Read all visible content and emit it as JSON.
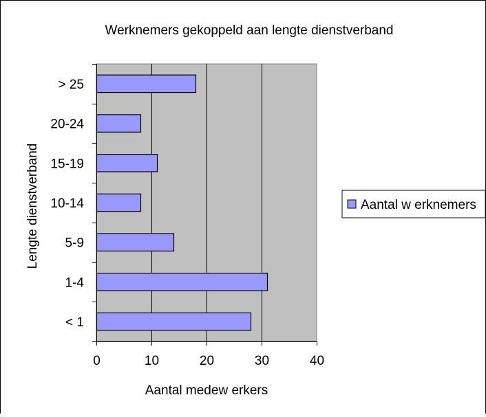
{
  "chart_data": {
    "type": "bar",
    "orientation": "horizontal",
    "title": "Werknemers gekoppeld aan lengte dienstverband",
    "xlabel": "Aantal medew erkers",
    "ylabel": "Lengte dienstverband",
    "categories": [
      "< 1",
      "1-4",
      "5-9",
      "10-14",
      "15-19",
      "20-24",
      "> 25"
    ],
    "series": [
      {
        "name": "Aantal w erknemers",
        "values": [
          28,
          31,
          14,
          8,
          11,
          8,
          18
        ]
      }
    ],
    "xlim": [
      0,
      40
    ],
    "xticks": [
      "0",
      "10",
      "20",
      "30",
      "40"
    ],
    "grid": true,
    "legend_position": "right",
    "colors": {
      "plot_background": "#c0c0c0",
      "bar_fill": "#9999ff",
      "bar_stroke": "#000000",
      "gridline": "#000000"
    }
  }
}
